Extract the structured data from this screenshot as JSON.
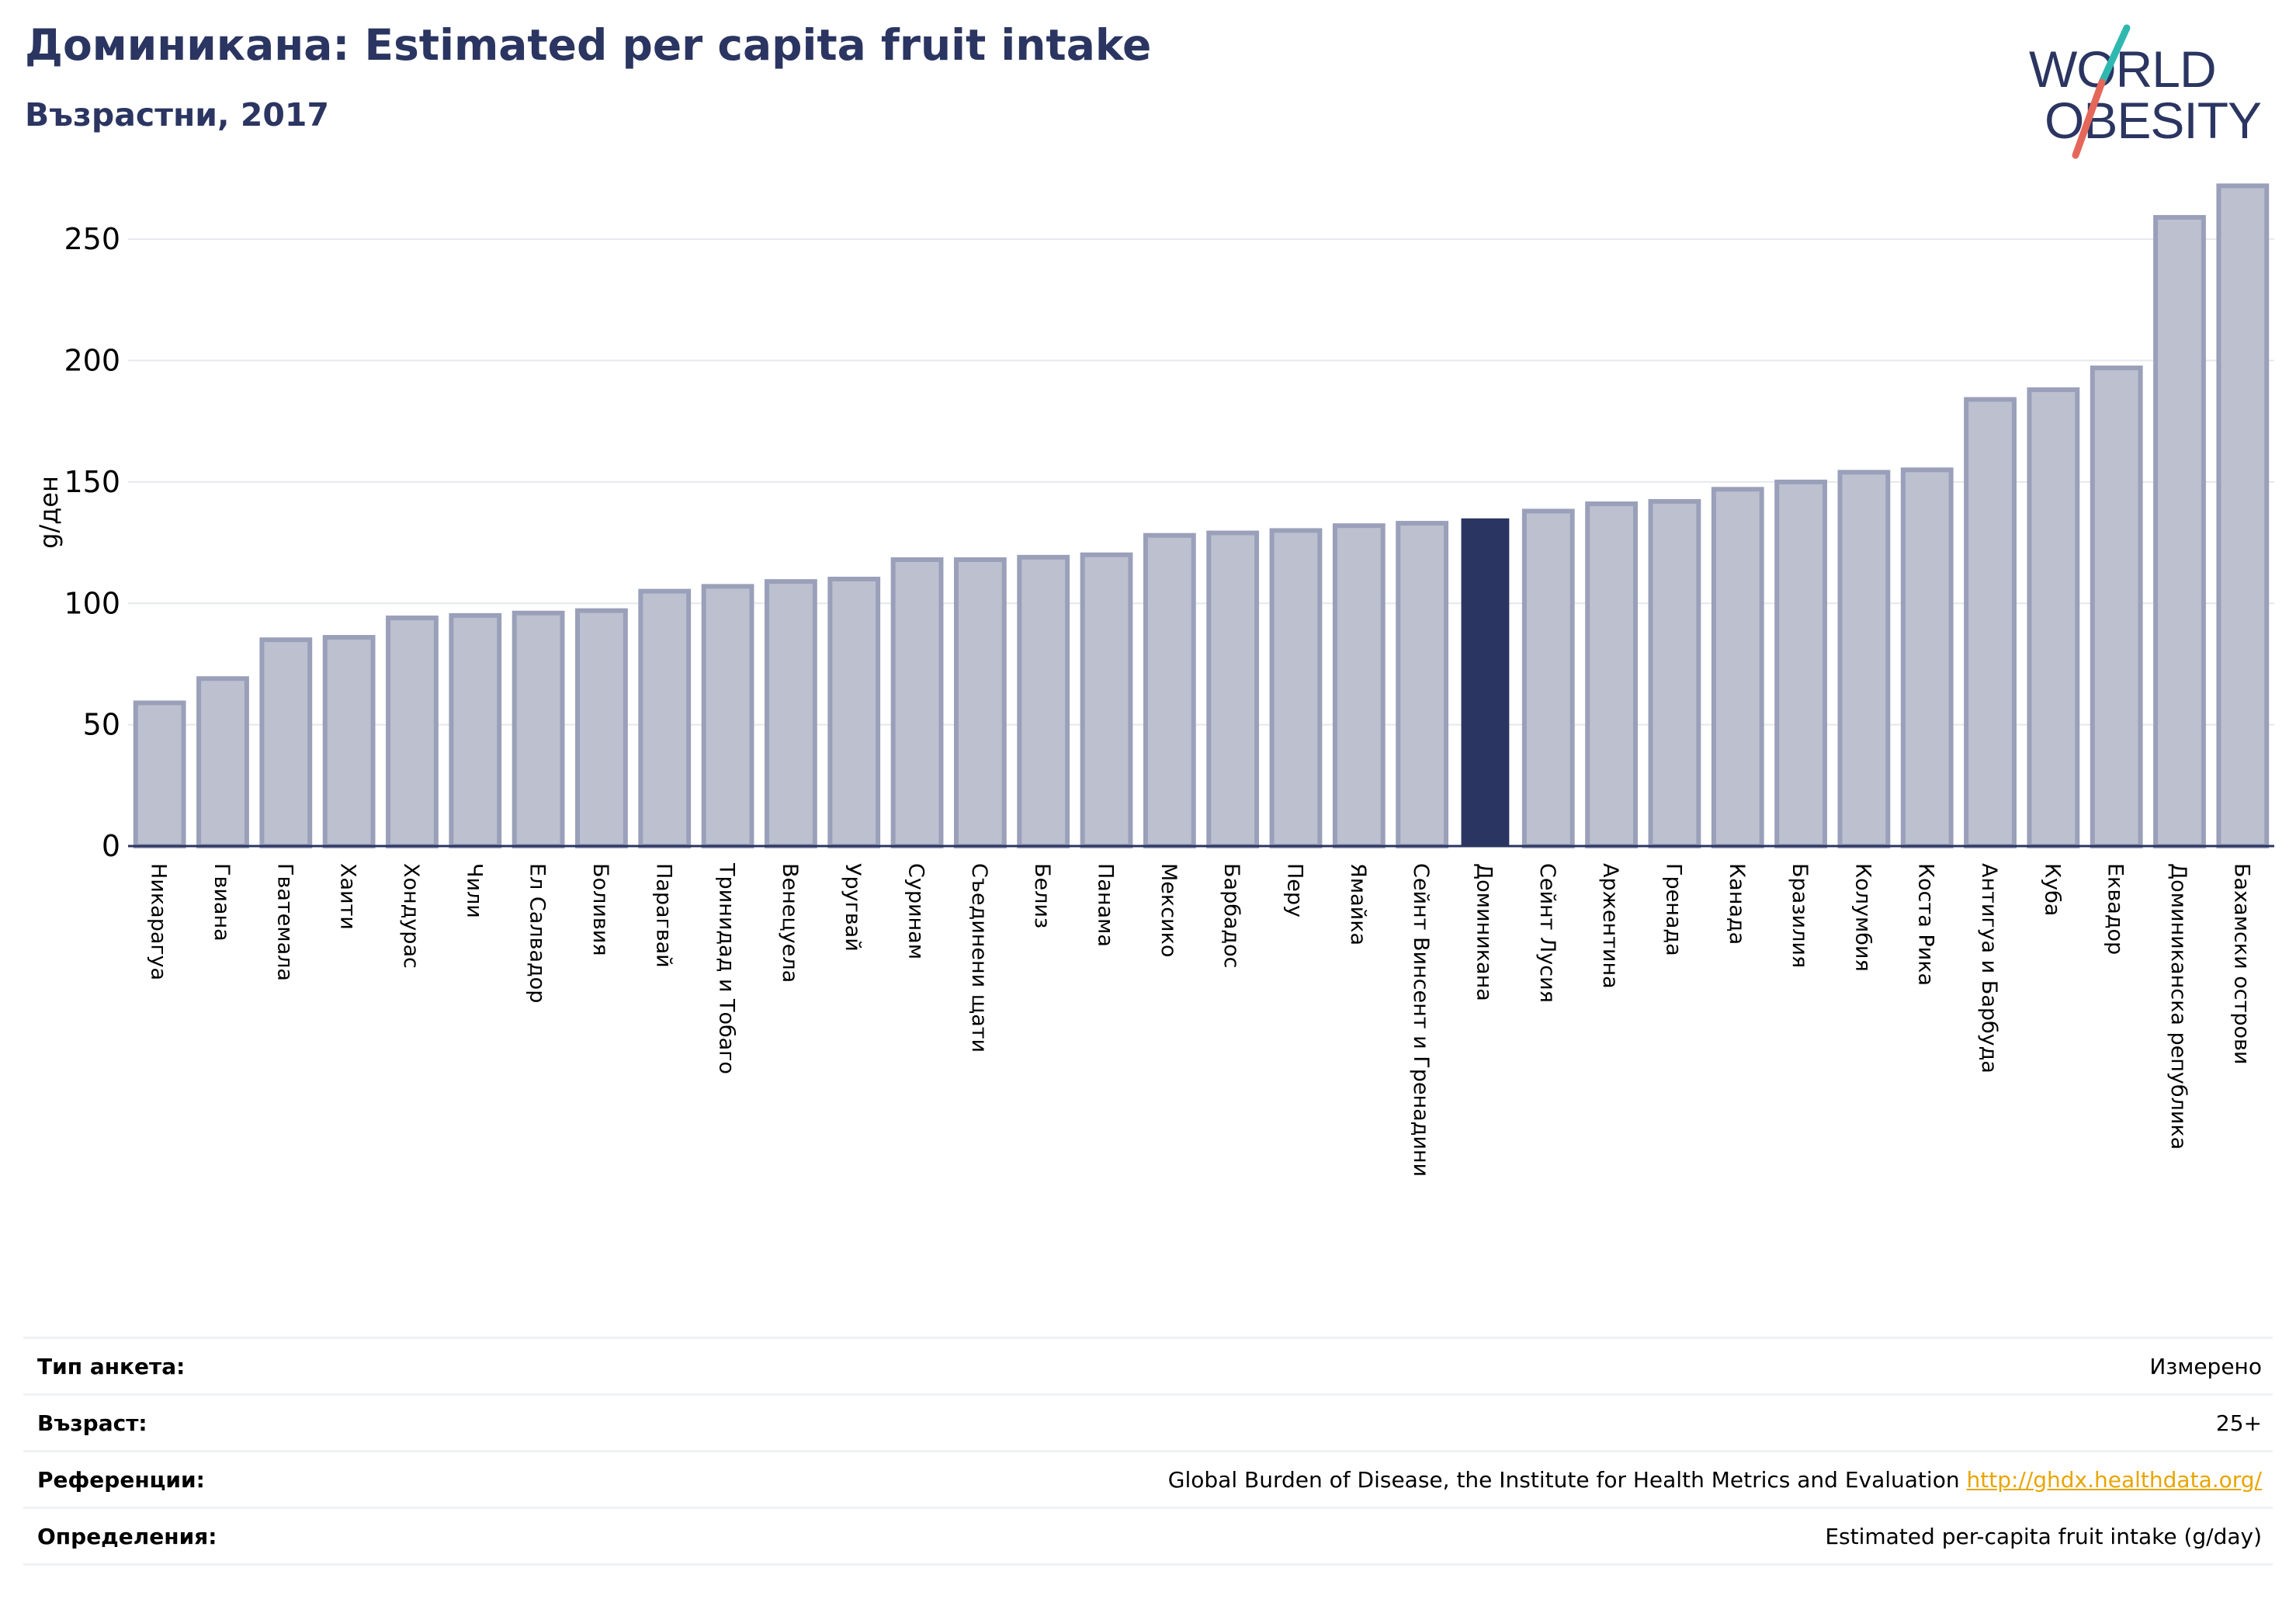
{
  "header": {
    "title": "Доминикана: Estimated per capita fruit intake",
    "subtitle": "Възрастни, 2017"
  },
  "logo": {
    "line1": "WORLD",
    "line2": "OBESITY",
    "colors": {
      "text": "#2b3561",
      "slash_teal": "#2fb8b0",
      "slash_red": "#e4675a"
    }
  },
  "colors": {
    "bar": "#bcc0cf",
    "bar_border": "#9aa0b9",
    "highlight": "#2b3561",
    "axis": "#2b3561",
    "grid": "#e6e8ee",
    "link": "#e8a500"
  },
  "chart_data": {
    "type": "bar",
    "ylabel": "g/ден",
    "ylim": [
      0,
      275
    ],
    "yticks": [
      0,
      50,
      100,
      150,
      200,
      250
    ],
    "grid": true,
    "highlight": "Доминикана",
    "categories": [
      "Никарагуа",
      "Гвиана",
      "Гватемала",
      "Хаити",
      "Хондурас",
      "Чили",
      "Ел Салвадор",
      "Боливия",
      "Парагвай",
      "Тринидад и Тобаго",
      "Венецуела",
      "Уругвай",
      "Суринам",
      "Съединени щати",
      "Белиз",
      "Панама",
      "Мексико",
      "Барбадос",
      "Перу",
      "Ямайка",
      "Сейнт Винсент и Гренадини",
      "Доминикана",
      "Сейнт Лусия",
      "Аржентина",
      "Гренада",
      "Канада",
      "Бразилия",
      "Колумбия",
      "Коста Рика",
      "Антигуа и Барбуда",
      "Куба",
      "Еквадор",
      "Доминиканска република",
      "Бахамски острови"
    ],
    "values": [
      59,
      69,
      85,
      86,
      94,
      95,
      96,
      97,
      105,
      107,
      109,
      110,
      118,
      118,
      119,
      120,
      128,
      129,
      130,
      132,
      133,
      135,
      138,
      141,
      142,
      147,
      150,
      154,
      155,
      184,
      188,
      197,
      259,
      272
    ]
  },
  "info": {
    "rows": [
      {
        "label": "Тип анкета:",
        "value": "Измерено"
      },
      {
        "label": "Възраст:",
        "value": "25+"
      },
      {
        "label": "Референции:",
        "value": "Global Burden of Disease, the Institute for Health Metrics and Evaluation",
        "link": "http://ghdx.healthdata.org/"
      },
      {
        "label": "Определения:",
        "value": "Estimated per-capita fruit intake (g/day)"
      }
    ]
  }
}
